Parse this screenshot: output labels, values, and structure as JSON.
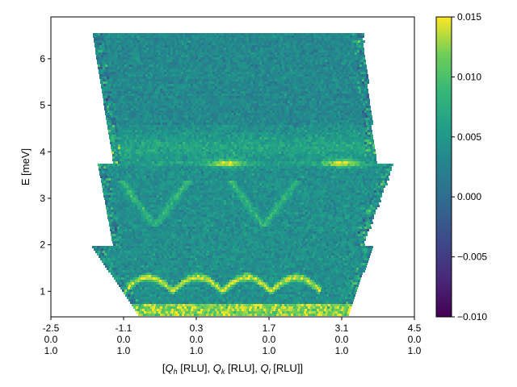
{
  "chart_data": {
    "type": "heatmap",
    "title": "",
    "xlabel_parts": [
      "[",
      "Q",
      "h",
      " [RLU], ",
      "Q",
      "k",
      " [RLU], ",
      "Q",
      "l",
      " [RLU]]"
    ],
    "ylabel": "E [meV]",
    "xlim": [
      -2.5,
      4.5
    ],
    "ylim": [
      0.45,
      6.9
    ],
    "x_ticks": [
      {
        "value": -2.5,
        "lines": [
          "-2.5",
          "0.0",
          "1.0"
        ]
      },
      {
        "value": -1.1,
        "lines": [
          "-1.1",
          "0.0",
          "1.0"
        ]
      },
      {
        "value": 0.3,
        "lines": [
          "0.3",
          "0.0",
          "1.0"
        ]
      },
      {
        "value": 1.7,
        "lines": [
          "1.7",
          "0.0",
          "1.0"
        ]
      },
      {
        "value": 3.1,
        "lines": [
          "3.1",
          "0.0",
          "1.0"
        ]
      },
      {
        "value": 4.5,
        "lines": [
          "4.5",
          "0.0",
          "1.0"
        ]
      }
    ],
    "y_ticks": [
      1,
      2,
      3,
      4,
      5,
      6
    ],
    "colorbar": {
      "colormap": "viridis",
      "range": [
        -0.01,
        0.015
      ],
      "ticks": [
        -0.01,
        -0.005,
        0.0,
        0.005,
        0.01,
        0.015
      ],
      "tick_labels": [
        "−0.010",
        "−0.005",
        "0.000",
        "0.005",
        "0.010",
        "0.015"
      ]
    },
    "coverage_segments": [
      {
        "E_min": 0.45,
        "E_max": 1.95,
        "Q_left_at_Emin": -0.8,
        "Q_left_at_Emax": -1.7,
        "Q_right_at_Emin": 3.2,
        "Q_right_at_Emax": 3.7
      },
      {
        "E_min": 1.95,
        "E_max": 3.75,
        "Q_left_at_Emin": -1.3,
        "Q_left_at_Emax": -1.6,
        "Q_right_at_Emin": 3.5,
        "Q_right_at_Emax": 4.1
      },
      {
        "E_min": 3.75,
        "E_max": 6.55,
        "Q_left_at_Emin": -1.3,
        "Q_left_at_Emax": -1.7,
        "Q_right_at_Emin": 3.75,
        "Q_right_at_Emax": 3.5
      }
    ],
    "features": [
      {
        "name": "low-energy magnon arches",
        "E_base": 1.0,
        "E_top": 1.3,
        "Q_start": -1.1,
        "Q_end": 2.7,
        "arch_count": 4,
        "value": 0.015
      },
      {
        "name": "elastic line",
        "E_min": 0.45,
        "E_max": 0.75,
        "value": 0.015
      },
      {
        "name": "flat mode spots",
        "E": 3.75,
        "Q_centers": [
          0.9,
          3.1
        ],
        "value": 0.013
      },
      {
        "name": "V-shaped dispersions",
        "E_top": 3.4,
        "E_bottom": 2.4,
        "Q_centers": [
          -0.5,
          1.6
        ],
        "value": 0.009
      },
      {
        "name": "upper band",
        "E": 4.1,
        "value": 0.006
      }
    ]
  }
}
